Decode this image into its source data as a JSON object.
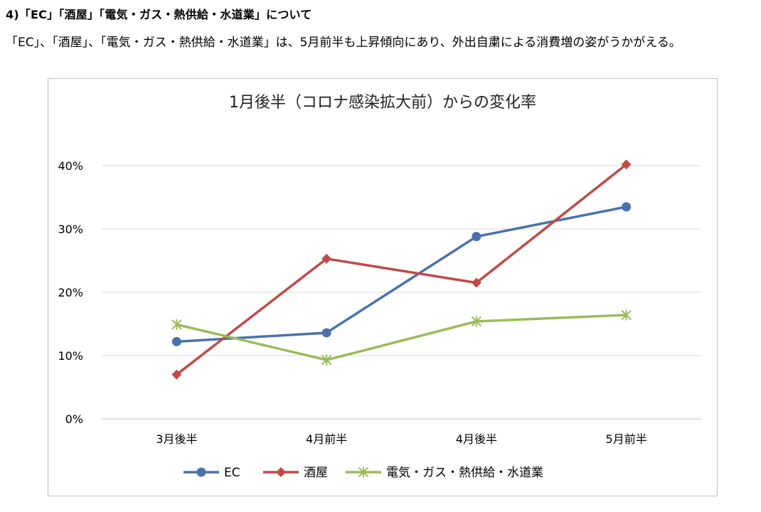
{
  "heading": "4)「EC」「酒屋」「電気・ガス・熱供給・水道業」について",
  "paragraph": "「EC」、「酒屋」、「電気・ガス・熱供給・水道業」は、5月前半も上昇傾向にあり、外出自粛による消費増の姿がうかがえる。",
  "chart_data": {
    "type": "line",
    "title": "1月後半（コロナ感染拡大前）からの変化率",
    "categories": [
      "3月後半",
      "4月前半",
      "4月後半",
      "5月前半"
    ],
    "y_ticks": [
      "0%",
      "10%",
      "20%",
      "30%",
      "40%"
    ],
    "ylim": [
      0,
      40
    ],
    "grid": true,
    "legend_position": "bottom",
    "series": [
      {
        "name": "EC",
        "values": [
          12.2,
          13.6,
          28.8,
          33.5
        ],
        "color": "#4a72aa",
        "marker": "circle"
      },
      {
        "name": "酒屋",
        "values": [
          7.0,
          25.3,
          21.5,
          40.2
        ],
        "color": "#be4b48",
        "marker": "diamond"
      },
      {
        "name": "電気・ガス・熱供給・水道業",
        "values": [
          14.9,
          9.3,
          15.4,
          16.4
        ],
        "color": "#9bbb59",
        "marker": "star"
      }
    ]
  }
}
